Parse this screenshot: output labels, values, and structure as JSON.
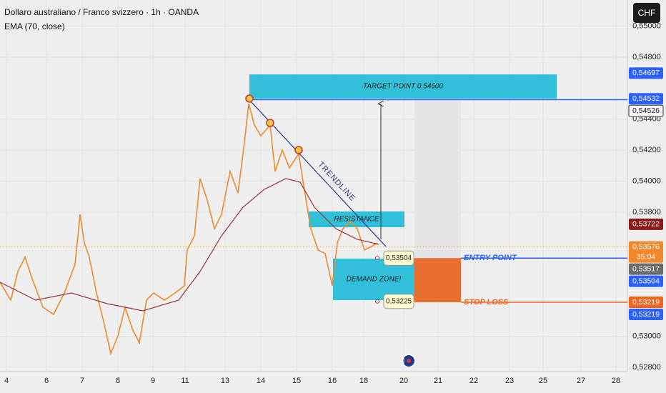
{
  "chart_data": {
    "type": "line",
    "title": "Dollaro australiano / Franco svizzero · 1h · OANDA",
    "indicator": "EMA (70, close)",
    "currency_button": "CHF",
    "xlim": [
      -0.18,
      17.38
    ],
    "ylim": [
      0.52772,
      0.55169
    ],
    "xticks": [
      {
        "value": 0,
        "label": "4"
      },
      {
        "value": 1.12,
        "label": "6"
      },
      {
        "value": 2.12,
        "label": "7"
      },
      {
        "value": 3.12,
        "label": "8"
      },
      {
        "value": 4.1,
        "label": "9"
      },
      {
        "value": 5.0,
        "label": "11"
      },
      {
        "value": 6.12,
        "label": "13"
      },
      {
        "value": 7.12,
        "label": "14"
      },
      {
        "value": 8.12,
        "label": "15"
      },
      {
        "value": 9.12,
        "label": "16"
      },
      {
        "value": 10.0,
        "label": "18"
      },
      {
        "value": 11.12,
        "label": "20"
      },
      {
        "value": 12.08,
        "label": "21"
      },
      {
        "value": 13.08,
        "label": "22"
      },
      {
        "value": 14.08,
        "label": "23"
      },
      {
        "value": 15.02,
        "label": "25"
      },
      {
        "value": 16.08,
        "label": "27"
      },
      {
        "value": 17.06,
        "label": "28"
      }
    ],
    "yticks": [
      {
        "value": 0.528,
        "label": "0,52800"
      },
      {
        "value": 0.53,
        "label": "0,53000"
      },
      {
        "value": 0.538,
        "label": "0,53800"
      },
      {
        "value": 0.54,
        "label": "0,54000"
      },
      {
        "value": 0.542,
        "label": "0,54200"
      },
      {
        "value": 0.544,
        "label": "0,54400"
      },
      {
        "value": 0.548,
        "label": "0,54800"
      },
      {
        "value": 0.55,
        "label": "0,55000"
      }
    ],
    "grid": true,
    "series": [
      {
        "color": "#f0892c",
        "x": [
          -0.18,
          0.12,
          0.32,
          0.52,
          0.72,
          1.02,
          1.32,
          1.62,
          1.92,
          2.06,
          2.18,
          2.32,
          2.52,
          2.72,
          2.92,
          3.12,
          3.32,
          3.52,
          3.72,
          3.92,
          4.12,
          4.42,
          4.72,
          4.98,
          5.06,
          5.26,
          5.42,
          5.62,
          5.82,
          6.02,
          6.26,
          6.48,
          6.66,
          6.78,
          6.94,
          7.12,
          7.38,
          7.52,
          7.72,
          7.92,
          8.18,
          8.32,
          8.52,
          8.72,
          8.92,
          9.12,
          9.26,
          9.42,
          9.62,
          9.82,
          10.02,
          10.22,
          10.38
        ],
        "values": [
          0.53348,
          0.53233,
          0.53418,
          0.5351,
          0.53371,
          0.53187,
          0.53141,
          0.53279,
          0.53464,
          0.53786,
          0.53602,
          0.5351,
          0.53279,
          0.53095,
          0.52888,
          0.53003,
          0.53187,
          0.53049,
          0.52957,
          0.53233,
          0.53279,
          0.53233,
          0.53279,
          0.53325,
          0.53556,
          0.53648,
          0.54017,
          0.53878,
          0.53694,
          0.53786,
          0.54063,
          0.53924,
          0.54247,
          0.545,
          0.54362,
          0.54293,
          0.54362,
          0.54063,
          0.54201,
          0.54086,
          0.54178,
          0.53971,
          0.53694,
          0.53556,
          0.53533,
          0.53325,
          0.53602,
          0.53694,
          0.5374,
          0.53694,
          0.53556,
          0.53579,
          0.53602
        ]
      },
      {
        "color": "#a0303a",
        "x": [
          -0.18,
          0.82,
          1.82,
          2.82,
          3.82,
          4.82,
          5.42,
          6.02,
          6.62,
          7.22,
          7.82,
          8.22,
          8.62,
          9.22,
          9.82,
          10.42
        ],
        "values": [
          0.53348,
          0.53233,
          0.53279,
          0.5321,
          0.53164,
          0.53233,
          0.53418,
          0.53648,
          0.53832,
          0.53948,
          0.54017,
          0.53994,
          0.53832,
          0.53694,
          0.53625,
          0.53593
        ]
      }
    ],
    "zones": [
      {
        "label": "TARGET POINT 0.54600",
        "color": "#26bcd7",
        "x": [
          6.8,
          15.4
        ],
        "y": [
          0.54689,
          0.54533
        ]
      },
      {
        "label": "RESISTANCE",
        "color": "#26bcd7",
        "x": [
          8.46,
          11.14
        ],
        "y": [
          0.53805,
          0.53703
        ]
      },
      {
        "label": "DEMAND ZONE!",
        "color": "#26bcd7",
        "x": [
          9.14,
          11.42
        ],
        "y": [
          0.53501,
          0.53233
        ]
      }
    ],
    "trendline": {
      "label": "TRENDLINE",
      "color": "#2a3a8c",
      "x": [
        6.8,
        10.62
      ],
      "y": [
        0.54524,
        0.53579
      ]
    },
    "pivots": {
      "x": [
        6.8,
        7.38,
        8.18
      ],
      "y": [
        0.54533,
        0.54376,
        0.54201
      ]
    },
    "arrow": {
      "x": 10.48,
      "y": [
        0.53625,
        0.545
      ]
    },
    "position": {
      "x": [
        11.42,
        12.72
      ],
      "target": 0.54526,
      "entry": 0.53504,
      "stop": 0.53219
    },
    "levels": [
      {
        "label": "ENTRY POINT",
        "value": 0.53504,
        "color": "#2962ff"
      },
      {
        "label": "STOP LOSS",
        "value": 0.53219,
        "color": "#f0641e"
      }
    ],
    "callouts": [
      {
        "label": "0,53504",
        "value": 0.53504,
        "x": 10.62
      },
      {
        "label": "0,53225",
        "value": 0.53225,
        "x": 10.62
      }
    ],
    "current_price": 0.53576,
    "price_labels": [
      {
        "value": 0.54697,
        "label": "0,54697",
        "color": "#2962ff"
      },
      {
        "value": 0.54532,
        "label": "0,54532",
        "color": "#2962ff"
      },
      {
        "value": 0.54526,
        "label": "0,54526",
        "color": "#ffffff"
      },
      {
        "value": 0.53722,
        "label": "0,53722",
        "color": "#8b1a1a"
      },
      {
        "value": 0.53576,
        "label": "0,53576",
        "color": "#f0892c",
        "countdown": "35:04"
      },
      {
        "value": 0.53517,
        "label": "0,53517",
        "color": "#6b6b6b"
      },
      {
        "value": 0.53504,
        "label": "0,53504",
        "color": "#2962ff"
      },
      {
        "value": 0.53219,
        "label": "0,53219",
        "color": "#f0641e"
      },
      {
        "value": 0.53219,
        "label": "0,53219",
        "color": "#2962ff"
      }
    ]
  }
}
